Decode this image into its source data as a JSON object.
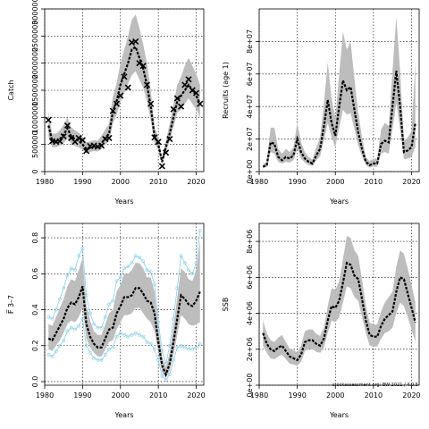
{
  "figure_stamp": "stockassessment.org: BW-2021 / 4.0.5",
  "colors": {
    "band": "#bdbdbd",
    "line": "#000000",
    "retro": "#87ceeb",
    "grid": "#000000"
  },
  "chart_data": [
    {
      "id": "catch",
      "type": "line",
      "ylabel": "Catch",
      "xlabel": "Years",
      "xlim": [
        1980,
        2022
      ],
      "ylim": [
        0,
        3000000
      ],
      "xticks": [
        1980,
        1990,
        2000,
        2010,
        2020
      ],
      "yticks": [
        0,
        500000,
        1000000,
        1500000,
        2000000,
        2500000,
        3000000
      ],
      "ytick_labels": [
        "0",
        "500000",
        "1000000",
        "1500000",
        "2000000",
        "2500000",
        "3000000"
      ],
      "grid": true,
      "years": [
        1981,
        1982,
        1983,
        1984,
        1985,
        1986,
        1987,
        1988,
        1989,
        1990,
        1991,
        1992,
        1993,
        1994,
        1995,
        1996,
        1997,
        1998,
        1999,
        2000,
        2001,
        2002,
        2003,
        2004,
        2005,
        2006,
        2007,
        2008,
        2009,
        2010,
        2011,
        2012,
        2013,
        2014,
        2015,
        2016,
        2017,
        2018,
        2019,
        2020,
        2021
      ],
      "estimate": [
        850000,
        560000,
        560000,
        600000,
        680000,
        800000,
        650000,
        600000,
        570000,
        500000,
        420000,
        440000,
        460000,
        450000,
        520000,
        620000,
        700000,
        1100000,
        1300000,
        1600000,
        1800000,
        2000000,
        2250000,
        2300000,
        2100000,
        1900000,
        1600000,
        1200000,
        650000,
        500000,
        180000,
        450000,
        700000,
        1000000,
        1300000,
        1400000,
        1500000,
        1600000,
        1500000,
        1400000,
        1250000
      ],
      "lower": [
        650000,
        450000,
        450000,
        480000,
        520000,
        620000,
        520000,
        470000,
        450000,
        400000,
        340000,
        360000,
        380000,
        370000,
        420000,
        500000,
        560000,
        880000,
        1050000,
        1280000,
        1450000,
        1620000,
        1780000,
        1850000,
        1700000,
        1550000,
        1300000,
        950000,
        520000,
        400000,
        130000,
        360000,
        560000,
        820000,
        1080000,
        1150000,
        1250000,
        1350000,
        1250000,
        1150000,
        1000000
      ],
      "upper": [
        1100000,
        700000,
        700000,
        760000,
        860000,
        1000000,
        820000,
        760000,
        720000,
        640000,
        540000,
        560000,
        580000,
        570000,
        660000,
        780000,
        880000,
        1380000,
        1630000,
        2000000,
        2250000,
        2500000,
        2800000,
        2900000,
        2650000,
        2350000,
        2000000,
        1500000,
        820000,
        630000,
        250000,
        570000,
        880000,
        1250000,
        1600000,
        1750000,
        1950000,
        2100000,
        1950000,
        1800000,
        1600000
      ],
      "observed": [
        950000,
        560000,
        550000,
        560000,
        650000,
        850000,
        620000,
        550000,
        620000,
        580000,
        380000,
        470000,
        480000,
        460000,
        480000,
        600000,
        620000,
        1120000,
        1250000,
        1400000,
        1750000,
        1550000,
        2380000,
        2400000,
        2000000,
        1950000,
        1600000,
        1250000,
        630000,
        550000,
        100000,
        350000,
        600000,
        1150000,
        1350000,
        1200000,
        1600000,
        1700000,
        1500000,
        1450000,
        1250000
      ]
    },
    {
      "id": "recruits",
      "type": "line",
      "ylabel": "Recruits (age 1)",
      "xlabel": "Years",
      "xlim": [
        1980,
        2022
      ],
      "ylim": [
        0,
        100000000
      ],
      "xticks": [
        1980,
        1990,
        2000,
        2010,
        2020
      ],
      "yticks": [
        0,
        20000000,
        40000000,
        60000000,
        80000000
      ],
      "ytick_labels": [
        "0e+00",
        "2e+07",
        "4e+07",
        "6e+07",
        "8e+07"
      ],
      "grid": true,
      "years": [
        1981,
        1982,
        1983,
        1984,
        1985,
        1986,
        1987,
        1988,
        1989,
        1990,
        1991,
        1992,
        1993,
        1994,
        1995,
        1996,
        1997,
        1998,
        1999,
        2000,
        2001,
        2002,
        2003,
        2004,
        2005,
        2006,
        2007,
        2008,
        2009,
        2010,
        2011,
        2012,
        2013,
        2014,
        2015,
        2016,
        2017,
        2018,
        2019,
        2020,
        2021
      ],
      "estimate": [
        3000000,
        4000000,
        18000000,
        17000000,
        9000000,
        7000000,
        9000000,
        8000000,
        10000000,
        20000000,
        12000000,
        8000000,
        6000000,
        5000000,
        10000000,
        14000000,
        28000000,
        44000000,
        30000000,
        22000000,
        40000000,
        56000000,
        50000000,
        52000000,
        38000000,
        24000000,
        14000000,
        6000000,
        4000000,
        5000000,
        5000000,
        17000000,
        19000000,
        18000000,
        40000000,
        62000000,
        40000000,
        12000000,
        13000000,
        15000000,
        30000000
      ],
      "lower": [
        2000000,
        3000000,
        12000000,
        11000000,
        6000000,
        5000000,
        6000000,
        5500000,
        7000000,
        14000000,
        8000000,
        5500000,
        4000000,
        3500000,
        7000000,
        9500000,
        19000000,
        30000000,
        21000000,
        15000000,
        27000000,
        38000000,
        35000000,
        36000000,
        26000000,
        16000000,
        9500000,
        4000000,
        2500000,
        3000000,
        3000000,
        11000000,
        12000000,
        11000000,
        26000000,
        42000000,
        26000000,
        7500000,
        8000000,
        9000000,
        15000000
      ],
      "upper": [
        4500000,
        6000000,
        27000000,
        27000000,
        14000000,
        11000000,
        14000000,
        12000000,
        15000000,
        30000000,
        18000000,
        12000000,
        9000000,
        7500000,
        15000000,
        21000000,
        42000000,
        67000000,
        45000000,
        33000000,
        60000000,
        86000000,
        75000000,
        80000000,
        57000000,
        36000000,
        21000000,
        9000000,
        6500000,
        8000000,
        8000000,
        26000000,
        30000000,
        28000000,
        62000000,
        95000000,
        62000000,
        19000000,
        21000000,
        25000000,
        67000000
      ]
    },
    {
      "id": "fishing_mortality",
      "type": "line",
      "ylabel": "F̅ 3–7",
      "xlabel": "Years",
      "xlim": [
        1980,
        2022
      ],
      "ylim": [
        -0.02,
        0.88
      ],
      "xticks": [
        1980,
        1990,
        2000,
        2010,
        2020
      ],
      "yticks": [
        0.0,
        0.2,
        0.4,
        0.6,
        0.8
      ],
      "ytick_labels": [
        "0.0",
        "0.2",
        "0.4",
        "0.6",
        "0.8"
      ],
      "grid": true,
      "years": [
        1981,
        1982,
        1983,
        1984,
        1985,
        1986,
        1987,
        1988,
        1989,
        1990,
        1991,
        1992,
        1993,
        1994,
        1995,
        1996,
        1997,
        1998,
        1999,
        2000,
        2001,
        2002,
        2003,
        2004,
        2005,
        2006,
        2007,
        2008,
        2009,
        2010,
        2011,
        2012,
        2013,
        2014,
        2015,
        2016,
        2017,
        2018,
        2019,
        2020,
        2021
      ],
      "estimate": [
        0.24,
        0.23,
        0.27,
        0.31,
        0.35,
        0.41,
        0.44,
        0.43,
        0.47,
        0.53,
        0.32,
        0.25,
        0.21,
        0.19,
        0.19,
        0.24,
        0.29,
        0.3,
        0.38,
        0.42,
        0.47,
        0.47,
        0.48,
        0.52,
        0.52,
        0.49,
        0.45,
        0.44,
        0.38,
        0.22,
        0.09,
        0.04,
        0.1,
        0.22,
        0.35,
        0.48,
        0.46,
        0.43,
        0.42,
        0.45,
        0.5
      ],
      "lower": [
        0.18,
        0.17,
        0.2,
        0.23,
        0.27,
        0.32,
        0.34,
        0.33,
        0.36,
        0.41,
        0.24,
        0.19,
        0.16,
        0.14,
        0.14,
        0.18,
        0.22,
        0.23,
        0.29,
        0.33,
        0.37,
        0.37,
        0.38,
        0.41,
        0.41,
        0.38,
        0.35,
        0.33,
        0.28,
        0.16,
        0.05,
        0.02,
        0.06,
        0.15,
        0.26,
        0.37,
        0.35,
        0.32,
        0.31,
        0.32,
        0.33
      ],
      "upper": [
        0.32,
        0.31,
        0.36,
        0.41,
        0.46,
        0.53,
        0.57,
        0.56,
        0.62,
        0.69,
        0.43,
        0.34,
        0.28,
        0.26,
        0.26,
        0.32,
        0.38,
        0.4,
        0.5,
        0.54,
        0.6,
        0.6,
        0.62,
        0.66,
        0.66,
        0.63,
        0.58,
        0.58,
        0.5,
        0.3,
        0.14,
        0.08,
        0.16,
        0.31,
        0.47,
        0.63,
        0.61,
        0.57,
        0.56,
        0.62,
        0.78
      ],
      "retro_lower": [
        0.15,
        0.14,
        0.17,
        0.2,
        0.23,
        0.28,
        0.3,
        0.29,
        0.31,
        0.35,
        0.2,
        0.16,
        0.13,
        0.12,
        0.12,
        0.15,
        0.18,
        0.19,
        0.25,
        0.27,
        0.26,
        0.25,
        0.26,
        0.27,
        0.26,
        0.25,
        0.22,
        0.21,
        0.18,
        0.12,
        0.03,
        0.01,
        0.04,
        0.12,
        0.19,
        0.2,
        0.19,
        0.18,
        0.18,
        0.19,
        0.21
      ],
      "retro_upper": [
        0.36,
        0.35,
        0.4,
        0.46,
        0.52,
        0.59,
        0.63,
        0.62,
        0.7,
        0.74,
        0.48,
        0.38,
        0.32,
        0.3,
        0.3,
        0.36,
        0.43,
        0.45,
        0.56,
        0.58,
        0.63,
        0.64,
        0.66,
        0.7,
        0.69,
        0.67,
        0.62,
        0.61,
        0.54,
        0.33,
        0.17,
        0.1,
        0.2,
        0.35,
        0.52,
        0.7,
        0.66,
        0.62,
        0.6,
        0.66,
        0.84
      ]
    },
    {
      "id": "ssb",
      "type": "line",
      "ylabel": "SSB",
      "xlabel": "Years",
      "xlim": [
        1980,
        2022
      ],
      "ylim": [
        0,
        9000000
      ],
      "xticks": [
        1980,
        1990,
        2000,
        2010,
        2020
      ],
      "yticks": [
        0,
        2000000,
        4000000,
        6000000,
        8000000
      ],
      "ytick_labels": [
        "0e+00",
        "2e+06",
        "4e+06",
        "6e+06",
        "8e+06"
      ],
      "grid": true,
      "years": [
        1981,
        1982,
        1983,
        1984,
        1985,
        1986,
        1987,
        1988,
        1989,
        1990,
        1991,
        1992,
        1993,
        1994,
        1995,
        1996,
        1997,
        1998,
        1999,
        2000,
        2001,
        2002,
        2003,
        2004,
        2005,
        2006,
        2007,
        2008,
        2009,
        2010,
        2011,
        2012,
        2013,
        2014,
        2015,
        2016,
        2017,
        2018,
        2019,
        2020,
        2021
      ],
      "estimate": [
        2900000,
        2300000,
        2000000,
        1900000,
        2100000,
        2200000,
        1900000,
        1600000,
        1500000,
        1400000,
        1700000,
        2400000,
        2500000,
        2500000,
        2300000,
        2200000,
        2600000,
        3600000,
        4400000,
        4300000,
        4700000,
        5700000,
        6800000,
        6700000,
        6100000,
        5900000,
        4800000,
        3600000,
        2800000,
        2700000,
        2700000,
        3300000,
        3700000,
        3900000,
        4100000,
        5200000,
        6000000,
        5900000,
        5100000,
        4300000,
        3500000
      ],
      "lower": [
        2200000,
        1800000,
        1500000,
        1450000,
        1600000,
        1700000,
        1450000,
        1200000,
        1150000,
        1100000,
        1300000,
        1900000,
        2000000,
        2000000,
        1850000,
        1800000,
        2100000,
        2900000,
        3600000,
        3500000,
        3800000,
        4600000,
        5500000,
        5400000,
        4900000,
        4700000,
        3800000,
        2900000,
        2200000,
        2150000,
        2150000,
        2600000,
        2900000,
        3000000,
        3200000,
        4000000,
        4600000,
        4400000,
        3800000,
        3100000,
        2400000
      ],
      "upper": [
        3600000,
        2900000,
        2500000,
        2400000,
        2650000,
        2800000,
        2400000,
        2050000,
        1950000,
        1800000,
        2200000,
        3000000,
        3100000,
        3100000,
        2850000,
        2750000,
        3200000,
        4400000,
        5400000,
        5300000,
        5800000,
        7000000,
        8300000,
        8200000,
        7500000,
        7200000,
        5900000,
        4450000,
        3500000,
        3350000,
        3400000,
        4100000,
        4600000,
        4900000,
        5200000,
        6600000,
        7500000,
        7300000,
        6500000,
        5600000,
        4600000
      ]
    }
  ]
}
